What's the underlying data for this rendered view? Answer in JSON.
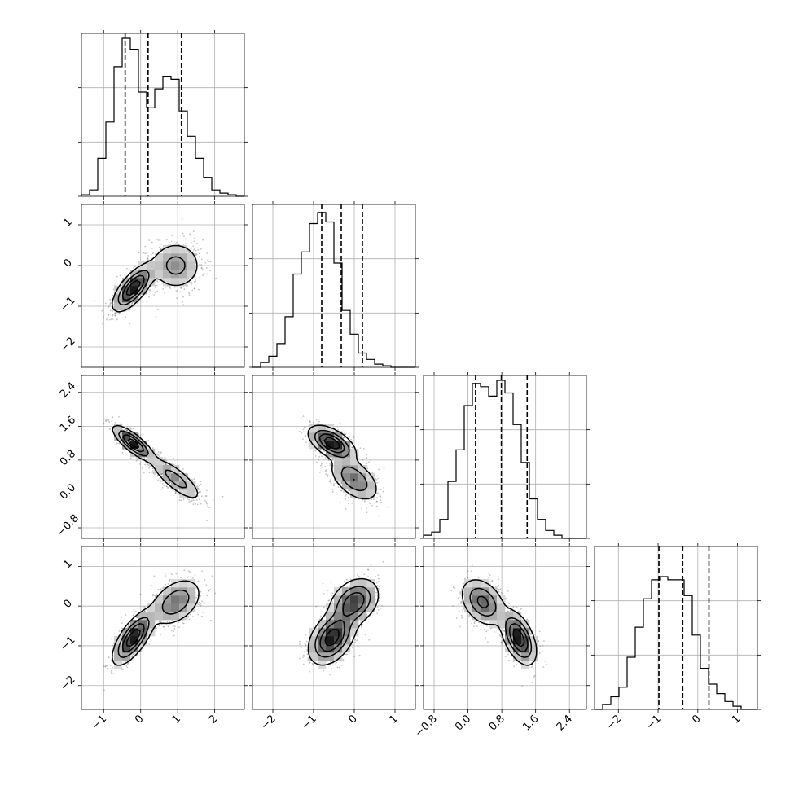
{
  "chart_data": {
    "type": "corner",
    "title": "",
    "parameters": [
      "",
      "",
      "",
      ""
    ],
    "histogram_bins": 20,
    "quantile_lines": "dashed",
    "grid": true,
    "ranges": [
      [
        -1.6,
        2.8
      ],
      [
        -2.5,
        1.5
      ],
      [
        -1.05,
        2.8
      ],
      [
        -2.6,
        1.5
      ]
    ],
    "ticks": [
      [
        -1,
        0,
        1,
        2
      ],
      [
        -2,
        -1,
        0,
        1
      ],
      [
        -0.8,
        0.0,
        0.8,
        1.6,
        2.4
      ],
      [
        -2,
        -1,
        0,
        1
      ]
    ],
    "tick_labels": [
      [
        "−1",
        "0",
        "1",
        "2"
      ],
      [
        "−2",
        "−1",
        "0",
        "1"
      ],
      [
        "−0.8",
        "0.0",
        "0.8",
        "1.6",
        "2.4"
      ],
      [
        "−2",
        "−1",
        "0",
        "1"
      ]
    ],
    "quantiles": [
      [
        -0.42,
        0.2,
        1.1
      ],
      [
        -0.8,
        -0.32,
        0.2
      ],
      [
        0.18,
        0.79,
        1.4
      ],
      [
        -0.98,
        -0.38,
        0.28
      ]
    ],
    "histograms": [
      [
        0.01,
        0.04,
        0.24,
        0.47,
        0.82,
        1.0,
        0.93,
        0.66,
        0.56,
        0.68,
        0.76,
        0.74,
        0.54,
        0.38,
        0.24,
        0.12,
        0.04,
        0.02,
        0.01,
        0.0
      ],
      [
        0.0,
        0.03,
        0.07,
        0.15,
        0.32,
        0.59,
        0.73,
        0.91,
        0.98,
        0.92,
        0.66,
        0.36,
        0.21,
        0.09,
        0.05,
        0.02,
        0.01,
        0.0,
        0.0,
        0.0
      ],
      [
        0.02,
        0.04,
        0.12,
        0.36,
        0.56,
        0.84,
        0.98,
        0.96,
        0.9,
        1.0,
        0.92,
        0.72,
        0.48,
        0.25,
        0.12,
        0.05,
        0.02,
        0.0,
        0.0,
        0.0
      ],
      [
        0.0,
        0.03,
        0.08,
        0.14,
        0.33,
        0.52,
        0.7,
        0.82,
        0.84,
        0.82,
        0.82,
        0.72,
        0.47,
        0.26,
        0.16,
        0.1,
        0.05,
        0.02,
        0.0,
        0.0
      ]
    ],
    "clusters": [
      {
        "mean": [
          -0.2,
          -0.55,
          1.2,
          -0.8
        ],
        "sd": [
          0.27,
          0.28,
          0.2,
          0.33
        ],
        "weight": 0.55
      },
      {
        "mean": [
          0.95,
          0.0,
          0.35,
          0.1
        ],
        "sd": [
          0.35,
          0.3,
          0.26,
          0.3
        ],
        "weight": 0.45
      }
    ],
    "pair_correlations": [
      [
        0.7,
        0.0
      ],
      [
        -0.8,
        -0.8
      ],
      [
        0.7,
        0.4
      ],
      [
        -0.55,
        -0.5
      ],
      [
        0.4,
        0.3
      ],
      [
        -0.5,
        -0.35
      ]
    ]
  }
}
